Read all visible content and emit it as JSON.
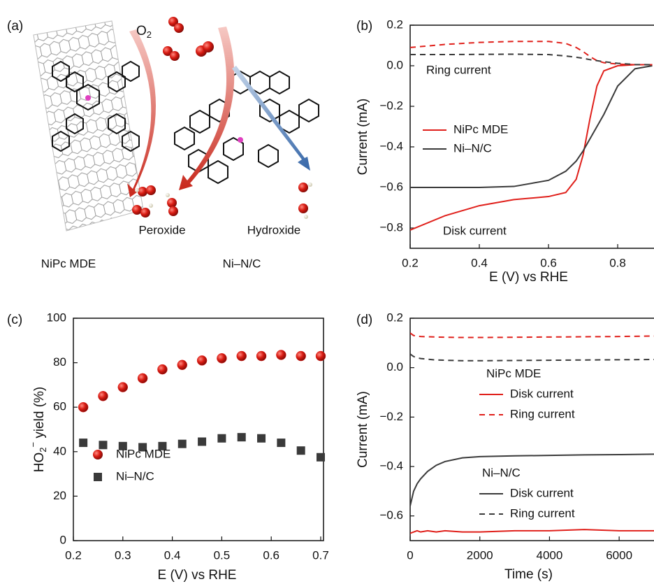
{
  "diagram": {
    "panel_label": "(a)",
    "o2": {
      "main": "O",
      "sub": "2"
    },
    "labels": [
      "Peroxide",
      "Hydroxide"
    ],
    "captions": [
      "NiPc MDE",
      "Ni–N/C"
    ]
  },
  "chart_data": [
    {
      "type": "line",
      "panel_label": "(b)",
      "xlabel": "E (V) vs RHE",
      "ylabel": "Current (mA)",
      "xlim": [
        0.2,
        0.905
      ],
      "ylim": [
        -0.9,
        0.2
      ],
      "xticks": [
        0.2,
        0.4,
        0.6,
        0.8
      ],
      "yticks": [
        0.2,
        {
          "value": 0,
          "label": "0.0"
        },
        {
          "value": -0.2,
          "label": "−0.2"
        },
        {
          "value": -0.4,
          "label": "−0.4"
        },
        {
          "value": -0.6,
          "label": "−0.6"
        },
        {
          "value": -0.8,
          "label": "−0.8"
        }
      ],
      "x": [
        0.2,
        0.3,
        0.4,
        0.5,
        0.6,
        0.65,
        0.68,
        0.7,
        0.72,
        0.74,
        0.76,
        0.8,
        0.85,
        0.9
      ],
      "series": [
        {
          "name": "NiPc MDE",
          "color": "#e0201b",
          "dashed": false,
          "values": [
            -0.81,
            -0.74,
            -0.69,
            -0.66,
            -0.645,
            -0.625,
            -0.56,
            -0.44,
            -0.26,
            -0.1,
            -0.025,
            0.0,
            0.005,
            0.005
          ]
        },
        {
          "name": "Ni–N/C",
          "color": "#3a3a3a",
          "dashed": false,
          "values": [
            -0.6,
            -0.6,
            -0.6,
            -0.595,
            -0.565,
            -0.52,
            -0.47,
            -0.42,
            -0.36,
            -0.3,
            -0.24,
            -0.1,
            -0.015,
            0.0
          ]
        },
        {
          "color": "#e0201b",
          "dashed": true,
          "values": [
            0.09,
            0.105,
            0.115,
            0.12,
            0.12,
            0.11,
            0.09,
            0.07,
            0.045,
            0.025,
            0.015,
            0.008,
            0.005,
            0.005
          ]
        },
        {
          "color": "#3a3a3a",
          "dashed": true,
          "values": [
            0.055,
            0.055,
            0.056,
            0.057,
            0.055,
            0.048,
            0.042,
            0.037,
            0.03,
            0.025,
            0.02,
            0.012,
            0.006,
            0.005
          ]
        }
      ],
      "annotations": [
        "Ring current",
        "Disk current"
      ]
    },
    {
      "type": "scatter",
      "panel_label": "(c)",
      "xlabel": "E (V) vs RHE",
      "ylabel": {
        "main": "HO",
        "sub": "2",
        "sup": "−",
        "rest": " yield (%)"
      },
      "xlim": [
        0.2,
        0.7
      ],
      "ylim": [
        0,
        100
      ],
      "xticks": [
        0.2,
        0.3,
        0.4,
        0.5,
        0.6,
        0.7
      ],
      "yticks": [
        0,
        20,
        40,
        60,
        80,
        100
      ],
      "x": [
        0.22,
        0.26,
        0.3,
        0.34,
        0.38,
        0.42,
        0.46,
        0.5,
        0.54,
        0.58,
        0.62,
        0.66,
        0.7
      ],
      "series": [
        {
          "name": "NiPc MDE",
          "color": "#e0201b",
          "marker": "circle",
          "values": [
            60,
            65,
            69,
            73,
            77,
            79,
            81,
            82,
            83,
            83,
            83.5,
            83,
            83
          ]
        },
        {
          "name": "Ni–N/C",
          "color": "#3a3a3a",
          "marker": "square",
          "values": [
            44,
            43,
            42.5,
            42,
            42.5,
            43.5,
            44.5,
            46,
            46.5,
            46,
            44,
            40.5,
            37.5
          ]
        }
      ]
    },
    {
      "type": "line",
      "panel_label": "(d)",
      "xlabel": "Time (s)",
      "ylabel": "Current (mA)",
      "xlim": [
        0,
        7000
      ],
      "ylim": [
        -0.7,
        0.2
      ],
      "xticks": [
        0,
        2000,
        4000,
        6000
      ],
      "yticks": [
        0.2,
        {
          "value": 0,
          "label": "0.0"
        },
        {
          "value": -0.2,
          "label": "−0.2"
        },
        {
          "value": -0.4,
          "label": "−0.4"
        },
        {
          "value": -0.6,
          "label": "−0.6"
        }
      ],
      "x": [
        0,
        100,
        200,
        300,
        500,
        750,
        1000,
        1500,
        2000,
        3000,
        4000,
        5000,
        6000,
        7000
      ],
      "groups": [
        "NiPc MDE",
        "Ni–N/C"
      ],
      "series": [
        {
          "name": "Disk current",
          "group": 0,
          "color": "#e0201b",
          "dashed": false,
          "values": [
            -0.67,
            -0.665,
            -0.66,
            -0.665,
            -0.66,
            -0.665,
            -0.66,
            -0.665,
            -0.665,
            -0.66,
            -0.66,
            -0.655,
            -0.66,
            -0.66
          ]
        },
        {
          "name": "Ring current",
          "group": 0,
          "color": "#e0201b",
          "dashed": true,
          "values": [
            0.14,
            0.13,
            0.128,
            0.126,
            0.125,
            0.124,
            0.123,
            0.122,
            0.122,
            0.123,
            0.124,
            0.125,
            0.126,
            0.128
          ]
        },
        {
          "name": "Disk current",
          "group": 1,
          "color": "#3a3a3a",
          "dashed": false,
          "values": [
            -0.56,
            -0.5,
            -0.47,
            -0.45,
            -0.42,
            -0.395,
            -0.38,
            -0.365,
            -0.36,
            -0.357,
            -0.355,
            -0.353,
            -0.352,
            -0.35
          ]
        },
        {
          "name": "Ring current",
          "group": 1,
          "color": "#3a3a3a",
          "dashed": true,
          "values": [
            0.055,
            0.045,
            0.04,
            0.037,
            0.034,
            0.031,
            0.03,
            0.028,
            0.028,
            0.029,
            0.03,
            0.031,
            0.032,
            0.033
          ]
        }
      ]
    }
  ]
}
